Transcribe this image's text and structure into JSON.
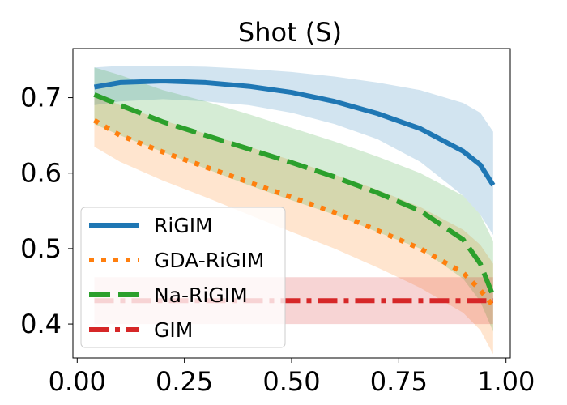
{
  "chart_data": {
    "type": "line",
    "title": "Shot (S)",
    "xlabel": "",
    "ylabel": "",
    "xlim": [
      -0.01,
      1.01
    ],
    "ylim": [
      0.355,
      0.765
    ],
    "xticks": [
      0.0,
      0.25,
      0.5,
      0.75,
      1.0
    ],
    "xtick_labels": [
      "0.00",
      "0.25",
      "0.50",
      "0.75",
      "1.00"
    ],
    "yticks": [
      0.4,
      0.5,
      0.6,
      0.7
    ],
    "ytick_labels": [
      "0.4",
      "0.5",
      "0.6",
      "0.7"
    ],
    "grid": false,
    "legend_position": "lower-left",
    "series": [
      {
        "name": "RiGIM",
        "color": "#1f77b4",
        "style": "solid",
        "x": [
          0.04,
          0.1,
          0.2,
          0.3,
          0.4,
          0.5,
          0.6,
          0.7,
          0.8,
          0.9,
          0.94,
          0.97
        ],
        "y": [
          0.714,
          0.72,
          0.722,
          0.72,
          0.715,
          0.707,
          0.695,
          0.679,
          0.659,
          0.629,
          0.611,
          0.584
        ],
        "band_upper": [
          0.74,
          0.742,
          0.742,
          0.741,
          0.738,
          0.734,
          0.728,
          0.72,
          0.71,
          0.693,
          0.68,
          0.655
        ],
        "band_lower": [
          0.69,
          0.695,
          0.698,
          0.695,
          0.69,
          0.68,
          0.665,
          0.645,
          0.615,
          0.57,
          0.545,
          0.518
        ]
      },
      {
        "name": "GDA-RiGIM",
        "color": "#ff7f0e",
        "style": "dotted",
        "x": [
          0.04,
          0.1,
          0.2,
          0.3,
          0.4,
          0.5,
          0.6,
          0.7,
          0.8,
          0.9,
          0.94,
          0.97
        ],
        "y": [
          0.67,
          0.65,
          0.628,
          0.608,
          0.588,
          0.568,
          0.548,
          0.524,
          0.5,
          0.468,
          0.445,
          0.424
        ],
        "band_upper": [
          0.705,
          0.69,
          0.67,
          0.652,
          0.635,
          0.617,
          0.598,
          0.578,
          0.555,
          0.525,
          0.505,
          0.48
        ],
        "band_lower": [
          0.635,
          0.615,
          0.59,
          0.568,
          0.545,
          0.522,
          0.5,
          0.475,
          0.448,
          0.415,
          0.392,
          0.36
        ]
      },
      {
        "name": "Na-RiGIM",
        "color": "#2ca02c",
        "style": "dashed",
        "x": [
          0.04,
          0.1,
          0.2,
          0.3,
          0.4,
          0.5,
          0.6,
          0.7,
          0.8,
          0.9,
          0.94,
          0.97
        ],
        "y": [
          0.704,
          0.69,
          0.668,
          0.65,
          0.632,
          0.614,
          0.595,
          0.574,
          0.55,
          0.512,
          0.48,
          0.437
        ],
        "band_upper": [
          0.74,
          0.73,
          0.71,
          0.695,
          0.678,
          0.66,
          0.642,
          0.622,
          0.6,
          0.57,
          0.545,
          0.51
        ],
        "band_lower": [
          0.665,
          0.65,
          0.628,
          0.606,
          0.584,
          0.564,
          0.545,
          0.522,
          0.5,
          0.46,
          0.43,
          0.39
        ]
      },
      {
        "name": "GIM",
        "color": "#d62728",
        "style": "dashdot",
        "x": [
          0.04,
          0.97
        ],
        "y": [
          0.431,
          0.431
        ],
        "band_upper": [
          0.462,
          0.462
        ],
        "band_lower": [
          0.4,
          0.4
        ]
      }
    ]
  }
}
